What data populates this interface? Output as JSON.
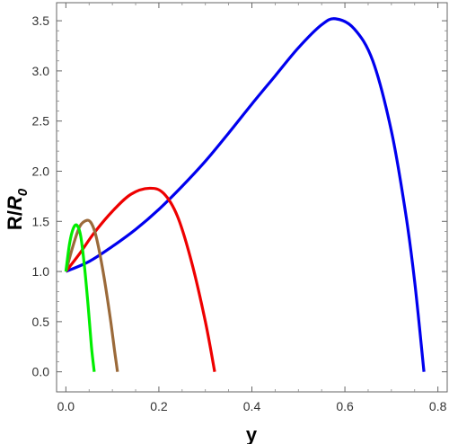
{
  "chart_data": {
    "type": "line",
    "title": "",
    "xlabel": "y",
    "ylabel_main": "R/",
    "ylabel_italic": "R",
    "ylabel_sub": "0",
    "xlim": [
      -0.02,
      0.82
    ],
    "ylim": [
      -0.2,
      3.68
    ],
    "x_ticks": [
      0.0,
      0.2,
      0.4,
      0.6,
      0.8
    ],
    "x_tick_labels": [
      "0.0",
      "0.2",
      "0.4",
      "0.6",
      "0.8"
    ],
    "y_ticks": [
      0.0,
      0.5,
      1.0,
      1.5,
      2.0,
      2.5,
      3.0,
      3.5
    ],
    "y_tick_labels": [
      "0.0",
      "0.5",
      "1.0",
      "1.5",
      "2.0",
      "2.5",
      "3.0",
      "3.5"
    ],
    "grid": false,
    "frame": true,
    "series": [
      {
        "color": "#0000ee",
        "x": [
          0.0,
          0.05,
          0.1,
          0.15,
          0.2,
          0.25,
          0.3,
          0.35,
          0.4,
          0.45,
          0.5,
          0.55,
          0.58,
          0.62,
          0.66,
          0.7,
          0.73,
          0.75,
          0.77
        ],
        "y": [
          1.0,
          1.1,
          1.25,
          1.42,
          1.62,
          1.85,
          2.1,
          2.38,
          2.67,
          2.95,
          3.23,
          3.46,
          3.52,
          3.42,
          3.1,
          2.4,
          1.6,
          0.9,
          0.0
        ]
      },
      {
        "color": "#ee0000",
        "x": [
          0.0,
          0.03,
          0.06,
          0.1,
          0.14,
          0.18,
          0.21,
          0.24,
          0.27,
          0.3,
          0.32
        ],
        "y": [
          1.0,
          1.18,
          1.38,
          1.6,
          1.77,
          1.83,
          1.78,
          1.55,
          1.1,
          0.5,
          0.0
        ]
      },
      {
        "color": "#9b6a3a",
        "x": [
          0.0,
          0.015,
          0.03,
          0.045,
          0.055,
          0.065,
          0.08,
          0.095,
          0.105,
          0.111
        ],
        "y": [
          1.0,
          1.25,
          1.45,
          1.51,
          1.48,
          1.35,
          1.0,
          0.55,
          0.2,
          0.0
        ]
      },
      {
        "color": "#00ee00",
        "x": [
          0.0,
          0.008,
          0.016,
          0.024,
          0.032,
          0.04,
          0.048,
          0.055,
          0.061
        ],
        "y": [
          1.0,
          1.28,
          1.43,
          1.46,
          1.35,
          1.05,
          0.65,
          0.25,
          0.0
        ]
      }
    ]
  }
}
